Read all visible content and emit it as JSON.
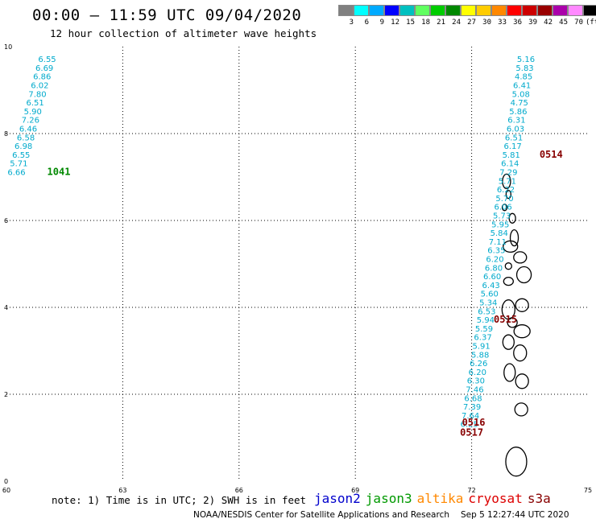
{
  "header": {
    "title": "00:00 – 11:59 UTC 09/04/2020",
    "subtitle": "12 hour collection of altimeter wave heights"
  },
  "legend": {
    "unit": "(ft)",
    "colors": [
      "#808080",
      "#00ffff",
      "#00aaff",
      "#0000ff",
      "#00c0c0",
      "#60ff60",
      "#00cc00",
      "#008800",
      "#ffff00",
      "#ffcc00",
      "#ff8800",
      "#ff0000",
      "#cc0000",
      "#990000",
      "#aa00aa",
      "#ff88ff",
      "#000000"
    ],
    "labels": [
      "3",
      "6",
      "9",
      "12",
      "15",
      "18",
      "21",
      "24",
      "27",
      "30",
      "33",
      "36",
      "39",
      "42",
      "45",
      "70"
    ]
  },
  "map": {
    "x_ticks": [
      "60",
      "63",
      "66",
      "69",
      "72",
      "75"
    ],
    "y_ticks": [
      "0",
      "2",
      "4",
      "6",
      "8",
      "10"
    ],
    "x_range": [
      60,
      75
    ],
    "y_range": [
      0,
      10
    ],
    "track_color": "#00aacc",
    "tracks": [
      {
        "name": "west",
        "points": [
          {
            "lon": 61.05,
            "lat": 9.72,
            "v": "6.55"
          },
          {
            "lon": 60.98,
            "lat": 9.52,
            "v": "6.69"
          },
          {
            "lon": 60.92,
            "lat": 9.32,
            "v": "6.86"
          },
          {
            "lon": 60.86,
            "lat": 9.12,
            "v": "6.02"
          },
          {
            "lon": 60.8,
            "lat": 8.92,
            "v": "7.80"
          },
          {
            "lon": 60.74,
            "lat": 8.72,
            "v": "6.51"
          },
          {
            "lon": 60.68,
            "lat": 8.52,
            "v": "5.90"
          },
          {
            "lon": 60.62,
            "lat": 8.32,
            "v": "7.26"
          },
          {
            "lon": 60.56,
            "lat": 8.12,
            "v": "6.46"
          },
          {
            "lon": 60.5,
            "lat": 7.92,
            "v": "6.58"
          },
          {
            "lon": 60.44,
            "lat": 7.72,
            "v": "6.98"
          },
          {
            "lon": 60.38,
            "lat": 7.52,
            "v": "6.55"
          },
          {
            "lon": 60.32,
            "lat": 7.32,
            "v": "5.71"
          },
          {
            "lon": 60.26,
            "lat": 7.12,
            "v": "6.66"
          }
        ]
      },
      {
        "name": "east",
        "points": [
          {
            "lon": 73.4,
            "lat": 9.72,
            "v": "5.16"
          },
          {
            "lon": 73.37,
            "lat": 9.52,
            "v": "5.83"
          },
          {
            "lon": 73.34,
            "lat": 9.32,
            "v": "4.85"
          },
          {
            "lon": 73.3,
            "lat": 9.12,
            "v": "6.41"
          },
          {
            "lon": 73.27,
            "lat": 8.92,
            "v": "5.08"
          },
          {
            "lon": 73.23,
            "lat": 8.72,
            "v": "4.75"
          },
          {
            "lon": 73.2,
            "lat": 8.52,
            "v": "5.86"
          },
          {
            "lon": 73.16,
            "lat": 8.32,
            "v": "6.31"
          },
          {
            "lon": 73.13,
            "lat": 8.12,
            "v": "6.03"
          },
          {
            "lon": 73.09,
            "lat": 7.92,
            "v": "6.51"
          },
          {
            "lon": 73.06,
            "lat": 7.72,
            "v": "6.17"
          },
          {
            "lon": 73.02,
            "lat": 7.52,
            "v": "5.81"
          },
          {
            "lon": 72.99,
            "lat": 7.32,
            "v": "6.14"
          },
          {
            "lon": 72.95,
            "lat": 7.12,
            "v": "7.29"
          },
          {
            "lon": 72.92,
            "lat": 6.92,
            "v": "5.71"
          },
          {
            "lon": 72.88,
            "lat": 6.72,
            "v": "6.22"
          },
          {
            "lon": 72.85,
            "lat": 6.52,
            "v": "5.70"
          },
          {
            "lon": 72.81,
            "lat": 6.32,
            "v": "6.06"
          },
          {
            "lon": 72.78,
            "lat": 6.12,
            "v": "5.73"
          },
          {
            "lon": 72.74,
            "lat": 5.92,
            "v": "5.95"
          },
          {
            "lon": 72.71,
            "lat": 5.72,
            "v": "5.84"
          },
          {
            "lon": 72.67,
            "lat": 5.52,
            "v": "7.11"
          },
          {
            "lon": 72.64,
            "lat": 5.32,
            "v": "6.35"
          },
          {
            "lon": 72.6,
            "lat": 5.12,
            "v": "6.20"
          },
          {
            "lon": 72.57,
            "lat": 4.92,
            "v": "6.80"
          },
          {
            "lon": 72.53,
            "lat": 4.72,
            "v": "6.60"
          },
          {
            "lon": 72.5,
            "lat": 4.52,
            "v": "6.43"
          },
          {
            "lon": 72.46,
            "lat": 4.32,
            "v": "5.60"
          },
          {
            "lon": 72.43,
            "lat": 4.12,
            "v": "5.34"
          },
          {
            "lon": 72.39,
            "lat": 3.92,
            "v": "6.53"
          },
          {
            "lon": 72.36,
            "lat": 3.72,
            "v": "5.94"
          },
          {
            "lon": 72.32,
            "lat": 3.52,
            "v": "5.59"
          },
          {
            "lon": 72.29,
            "lat": 3.32,
            "v": "6.37"
          },
          {
            "lon": 72.25,
            "lat": 3.12,
            "v": "5.91"
          },
          {
            "lon": 72.22,
            "lat": 2.92,
            "v": "5.88"
          },
          {
            "lon": 72.18,
            "lat": 2.72,
            "v": "6.26"
          },
          {
            "lon": 72.15,
            "lat": 2.52,
            "v": "6.20"
          },
          {
            "lon": 72.11,
            "lat": 2.32,
            "v": "6.30"
          },
          {
            "lon": 72.08,
            "lat": 2.12,
            "v": "7.46"
          },
          {
            "lon": 72.04,
            "lat": 1.92,
            "v": "6.68"
          },
          {
            "lon": 72.01,
            "lat": 1.72,
            "v": "7.39"
          },
          {
            "lon": 71.97,
            "lat": 1.52,
            "v": "7.64"
          },
          {
            "lon": 71.94,
            "lat": 1.32,
            "v": "6.25"
          }
        ]
      }
    ],
    "time_labels": [
      {
        "t": "1041",
        "lon": 61.05,
        "lat": 7.12,
        "color": "#008800"
      },
      {
        "t": "0514",
        "lon": 73.75,
        "lat": 7.52,
        "color": "#880000"
      },
      {
        "t": "0515",
        "lon": 72.57,
        "lat": 3.72,
        "color": "#880000"
      },
      {
        "t": "0516",
        "lon": 71.75,
        "lat": 1.35,
        "color": "#880000"
      },
      {
        "t": "0517",
        "lon": 71.7,
        "lat": 1.12,
        "color": "#880000"
      }
    ]
  },
  "footer": {
    "note": "note: 1) Time is in UTC; 2) SWH is in feet",
    "satellites": [
      {
        "name": "jason2",
        "color": "#0000cc"
      },
      {
        "name": "jason3",
        "color": "#009900"
      },
      {
        "name": "altika",
        "color": "#ff8800"
      },
      {
        "name": "cryosat",
        "color": "#dd0000"
      },
      {
        "name": "s3a",
        "color": "#880000"
      }
    ],
    "credit": "NOAA/NESDIS Center for Satellite Applications and Research",
    "timestamp": "Sep  5 12:27:44 UTC 2020"
  }
}
